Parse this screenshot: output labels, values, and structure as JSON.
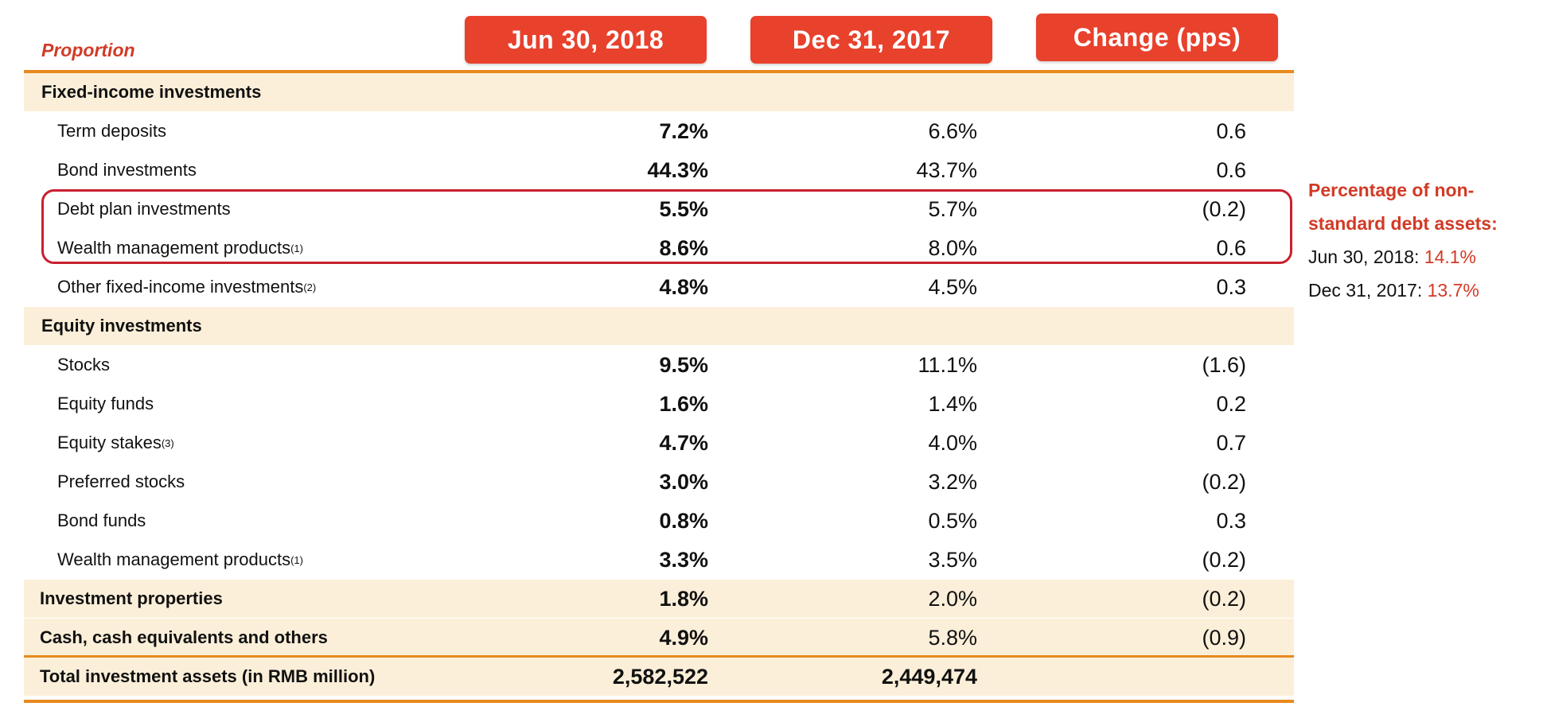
{
  "table": {
    "proportion_label": "Proportion",
    "headers": [
      "Jun 30, 2018",
      "Dec 31, 2017",
      "Change (pps)"
    ],
    "rows": [
      {
        "label": "Fixed-income investments",
        "kind": "header",
        "values": [
          "",
          "",
          ""
        ]
      },
      {
        "label": "Term deposits",
        "kind": "sub",
        "values": [
          "7.2%",
          "6.6%",
          "0.6"
        ]
      },
      {
        "label": "Bond investments",
        "kind": "sub",
        "values": [
          "44.3%",
          "43.7%",
          "0.6"
        ]
      },
      {
        "label": "Debt plan investments",
        "kind": "sub",
        "values": [
          "5.5%",
          "5.7%",
          "(0.2)"
        ]
      },
      {
        "label": "Wealth management products",
        "sup": "(1)",
        "kind": "sub",
        "values": [
          "8.6%",
          "8.0%",
          "0.6"
        ]
      },
      {
        "label": "Other fixed-income investments",
        "sup": "(2)",
        "kind": "sub",
        "values": [
          "4.8%",
          "4.5%",
          "0.3"
        ]
      },
      {
        "label": "Equity investments",
        "kind": "header",
        "values": [
          "",
          "",
          ""
        ]
      },
      {
        "label": "Stocks",
        "kind": "sub",
        "values": [
          "9.5%",
          "11.1%",
          "(1.6)"
        ]
      },
      {
        "label": "Equity funds",
        "kind": "sub",
        "values": [
          "1.6%",
          "1.4%",
          "0.2"
        ]
      },
      {
        "label": "Equity stakes",
        "sup": "(3)",
        "kind": "sub",
        "values": [
          "4.7%",
          "4.0%",
          "0.7"
        ]
      },
      {
        "label": "Preferred stocks",
        "kind": "sub",
        "values": [
          "3.0%",
          "3.2%",
          "(0.2)"
        ]
      },
      {
        "label": "Bond funds",
        "kind": "sub",
        "values": [
          "0.8%",
          "0.5%",
          "0.3"
        ]
      },
      {
        "label": "Wealth management products",
        "sup": "(1)",
        "kind": "sub",
        "values": [
          "3.3%",
          "3.5%",
          "(0.2)"
        ]
      },
      {
        "label": "Investment properties",
        "kind": "cat",
        "values": [
          "1.8%",
          "2.0%",
          "(0.2)"
        ]
      },
      {
        "label": "Cash, cash equivalents and others",
        "kind": "cat",
        "values": [
          "4.9%",
          "5.8%",
          "(0.9)"
        ]
      },
      {
        "label": "Total investment assets (in RMB million)",
        "kind": "total",
        "values": [
          "2,582,522",
          "2,449,474",
          ""
        ]
      }
    ]
  },
  "note": {
    "title_line1": "Percentage of non-",
    "title_line2": "standard debt assets:",
    "line1_label": "Jun 30, 2018:",
    "line1_value": "14.1%",
    "line2_label": "Dec 31, 2017:",
    "line2_value": "13.7%"
  },
  "colors": {
    "header_bg": "#e8412c",
    "accent_red": "#d23a26",
    "orange_rule": "#e88a1e",
    "row_shade": "#fcefd9",
    "box_border": "#c8202f"
  }
}
